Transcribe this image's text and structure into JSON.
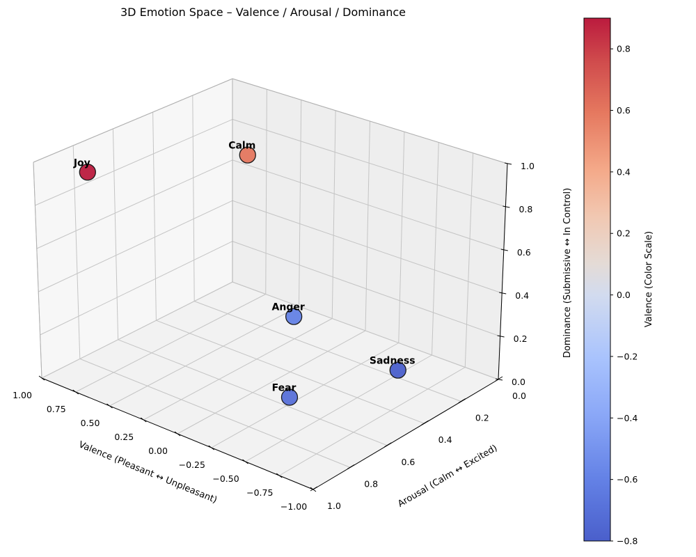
{
  "chart_data": {
    "type": "scatter",
    "projection": "3d",
    "title": "3D Emotion Space – Valence / Arousal / Dominance",
    "xlabel": "Valence (Pleasant ↔ Unpleasant)",
    "ylabel": "Arousal (Calm ↔ Excited)",
    "zlabel": "Dominance (Submissive ↔ In Control)",
    "xlim": [
      1.0,
      -1.0
    ],
    "ylim": [
      0.0,
      1.0
    ],
    "zlim": [
      0.0,
      1.0
    ],
    "xticks": [
      "1.00",
      "0.75",
      "0.50",
      "0.25",
      "0.00",
      "−0.25",
      "−0.50",
      "−0.75",
      "−1.00"
    ],
    "xtick_values": [
      1.0,
      0.75,
      0.5,
      0.25,
      0.0,
      -0.25,
      -0.5,
      -0.75,
      -1.0
    ],
    "yticks": [
      "0.0",
      "0.2",
      "0.4",
      "0.6",
      "0.8",
      "1.0"
    ],
    "ytick_values": [
      0.0,
      0.2,
      0.4,
      0.6,
      0.8,
      1.0
    ],
    "zticks": [
      "0.0",
      "0.2",
      "0.4",
      "0.6",
      "0.8",
      "1.0"
    ],
    "ztick_values": [
      0.0,
      0.2,
      0.4,
      0.6,
      0.8,
      1.0
    ],
    "grid": true,
    "points": [
      {
        "label": "Joy",
        "valence": 0.9,
        "arousal": 0.8,
        "dominance": 0.9
      },
      {
        "label": "Calm",
        "valence": 0.6,
        "arousal": 0.2,
        "dominance": 0.8
      },
      {
        "label": "Anger",
        "valence": -0.6,
        "arousal": 0.8,
        "dominance": 0.6
      },
      {
        "label": "Fear",
        "valence": -0.7,
        "arousal": 0.9,
        "dominance": 0.3
      },
      {
        "label": "Sadness",
        "valence": -0.8,
        "arousal": 0.4,
        "dominance": 0.2
      }
    ],
    "colorbar": {
      "label": "Valence (Color Scale)",
      "colormap": "coolwarm",
      "range": [
        -0.8,
        0.9
      ],
      "ticks": [
        "−0.8",
        "−0.6",
        "−0.4",
        "−0.2",
        "0.0",
        "0.2",
        "0.4",
        "0.6",
        "0.8"
      ],
      "tick_values": [
        -0.8,
        -0.6,
        -0.4,
        -0.2,
        0.0,
        0.2,
        0.4,
        0.6,
        0.8
      ],
      "alpha": 0.85
    }
  }
}
